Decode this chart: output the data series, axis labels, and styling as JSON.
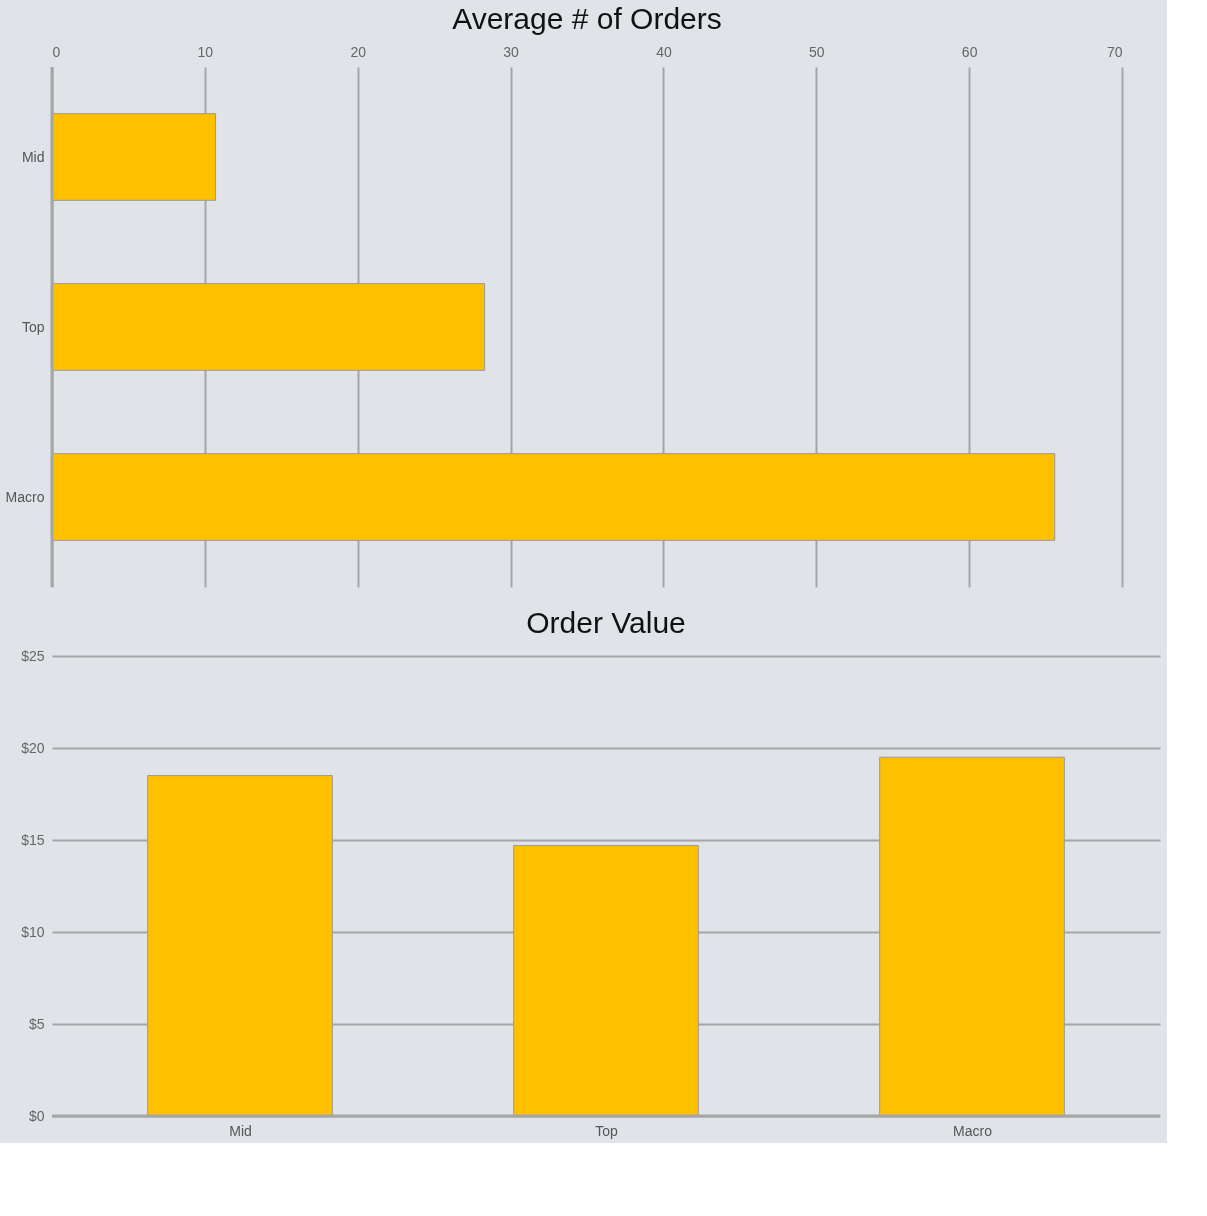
{
  "chart_data": [
    {
      "type": "bar",
      "title": "Average # of Orders",
      "orientation": "horizontal",
      "categories": [
        "Mid",
        "Top",
        "Macro"
      ],
      "values": [
        10.7,
        28.3,
        65.6
      ],
      "color": "#ffc000",
      "xlim": [
        0,
        70
      ],
      "xticks": [
        0,
        10,
        20,
        30,
        40,
        50,
        60,
        70
      ],
      "grid": "x"
    },
    {
      "type": "bar",
      "title": "Order Value",
      "categories": [
        "Mid",
        "Top",
        "Macro"
      ],
      "values": [
        18.5,
        14.7,
        19.5
      ],
      "color": "#ffc000",
      "ylim": [
        0,
        25
      ],
      "yticks": [
        {
          "value": 0,
          "label": "$0"
        },
        {
          "value": 5,
          "label": "$5"
        },
        {
          "value": 10,
          "label": "$10"
        },
        {
          "value": 15,
          "label": "$15"
        },
        {
          "value": 20,
          "label": "$20"
        },
        {
          "value": 25,
          "label": "$25"
        }
      ],
      "grid": "y"
    }
  ]
}
